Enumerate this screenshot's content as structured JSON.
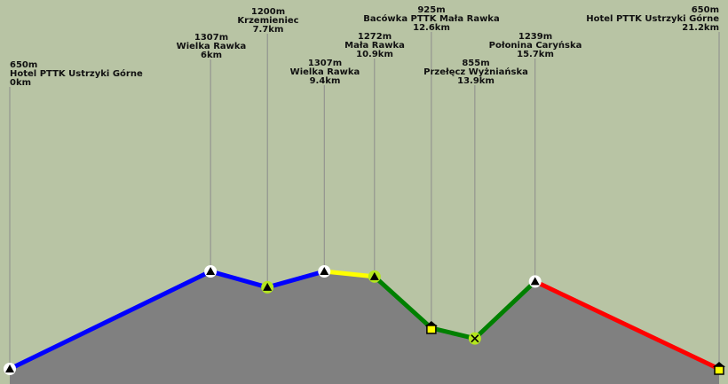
{
  "chart_data": {
    "type": "area",
    "title": "",
    "xlabel": "",
    "ylabel": "",
    "x_unit": "km",
    "y_unit": "m",
    "xlim": [
      0,
      21.2
    ],
    "points": [
      {
        "km": 0,
        "elev": 650,
        "name": "Hotel PTTK Ustrzyki Górne",
        "elev_label": "650m",
        "km_label": "0km",
        "marker": "peak-white"
      },
      {
        "km": 6,
        "elev": 1307,
        "name": "Wielka Rawka",
        "elev_label": "1307m",
        "km_label": "6km",
        "marker": "peak-white"
      },
      {
        "km": 7.7,
        "elev": 1200,
        "name": "Krzemieniec",
        "elev_label": "1200m",
        "km_label": "7.7km",
        "marker": "peak-green"
      },
      {
        "km": 9.4,
        "elev": 1307,
        "name": "Wielka Rawka",
        "elev_label": "1307m",
        "km_label": "9.4km",
        "marker": "peak-white"
      },
      {
        "km": 10.9,
        "elev": 1272,
        "name": "Mała Rawka",
        "elev_label": "1272m",
        "km_label": "10.9km",
        "marker": "peak-green"
      },
      {
        "km": 12.6,
        "elev": 925,
        "name": "Bacówka PTTK Mała Rawka",
        "elev_label": "925m",
        "km_label": "12.6km",
        "marker": "hut-yellow"
      },
      {
        "km": 13.9,
        "elev": 855,
        "name": "Przełęcz Wyżniańska",
        "elev_label": "855m",
        "km_label": "13.9km",
        "marker": "junction"
      },
      {
        "km": 15.7,
        "elev": 1239,
        "name": "Połonina Caryńska",
        "elev_label": "1239m",
        "km_label": "15.7km",
        "marker": "peak-white"
      },
      {
        "km": 21.2,
        "elev": 650,
        "name": "Hotel PTTK Ustrzyki Górne",
        "elev_label": "650m",
        "km_label": "21.2km",
        "marker": "hut-yellow"
      }
    ],
    "segments": [
      {
        "from": 0,
        "to": 1,
        "color": "#0000ff"
      },
      {
        "from": 1,
        "to": 2,
        "color": "#0000ff"
      },
      {
        "from": 2,
        "to": 3,
        "color": "#0000ff"
      },
      {
        "from": 3,
        "to": 4,
        "color": "#ffff00"
      },
      {
        "from": 4,
        "to": 5,
        "color": "#008000"
      },
      {
        "from": 5,
        "to": 6,
        "color": "#008000"
      },
      {
        "from": 6,
        "to": 7,
        "color": "#008000"
      },
      {
        "from": 7,
        "to": 8,
        "color": "#ff0000"
      }
    ],
    "colors": {
      "background": "#b8c4a4",
      "terrain_fill": "#808080",
      "marker_green": "#b4e61e",
      "marker_yellow": "#ffff00"
    }
  }
}
